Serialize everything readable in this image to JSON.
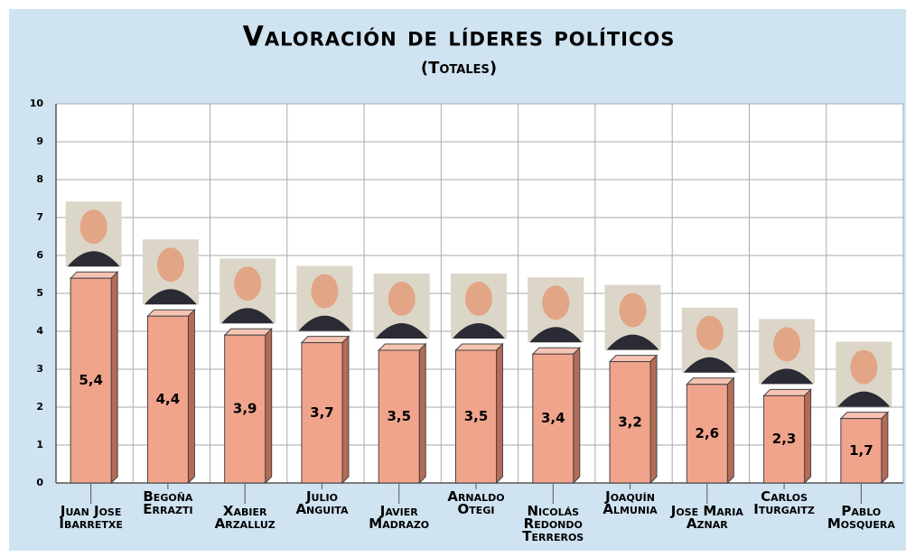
{
  "chart_data": {
    "type": "bar",
    "title": "Valoración de líderes políticos",
    "subtitle": "(Totales)",
    "categories": [
      "Juan Jose\nIbarretxe",
      "Begoña\nErrazti",
      "Xabier\nArzalluz",
      "Julio\nAnguita",
      "Javier\nMadrazo",
      "Arnaldo\nOtegi",
      "Nicolás\nRedondo\nTerreros",
      "Joaquín\nAlmunia",
      "Jose Maria\nAznar",
      "Carlos\nIturgaitz",
      "Pablo\nMosquera"
    ],
    "values": [
      5.4,
      4.4,
      3.9,
      3.7,
      3.5,
      3.5,
      3.4,
      3.2,
      2.6,
      2.3,
      1.7
    ],
    "value_labels": [
      "5,4",
      "4,4",
      "3,9",
      "3,7",
      "3,5",
      "3,5",
      "3,4",
      "3,2",
      "2,6",
      "2,3",
      "1,7"
    ],
    "color": "#f0a48c",
    "ylim": [
      0,
      10
    ],
    "yticks": [
      0,
      1,
      2,
      3,
      4,
      5,
      6,
      7,
      8,
      9,
      10
    ],
    "grid": true
  }
}
